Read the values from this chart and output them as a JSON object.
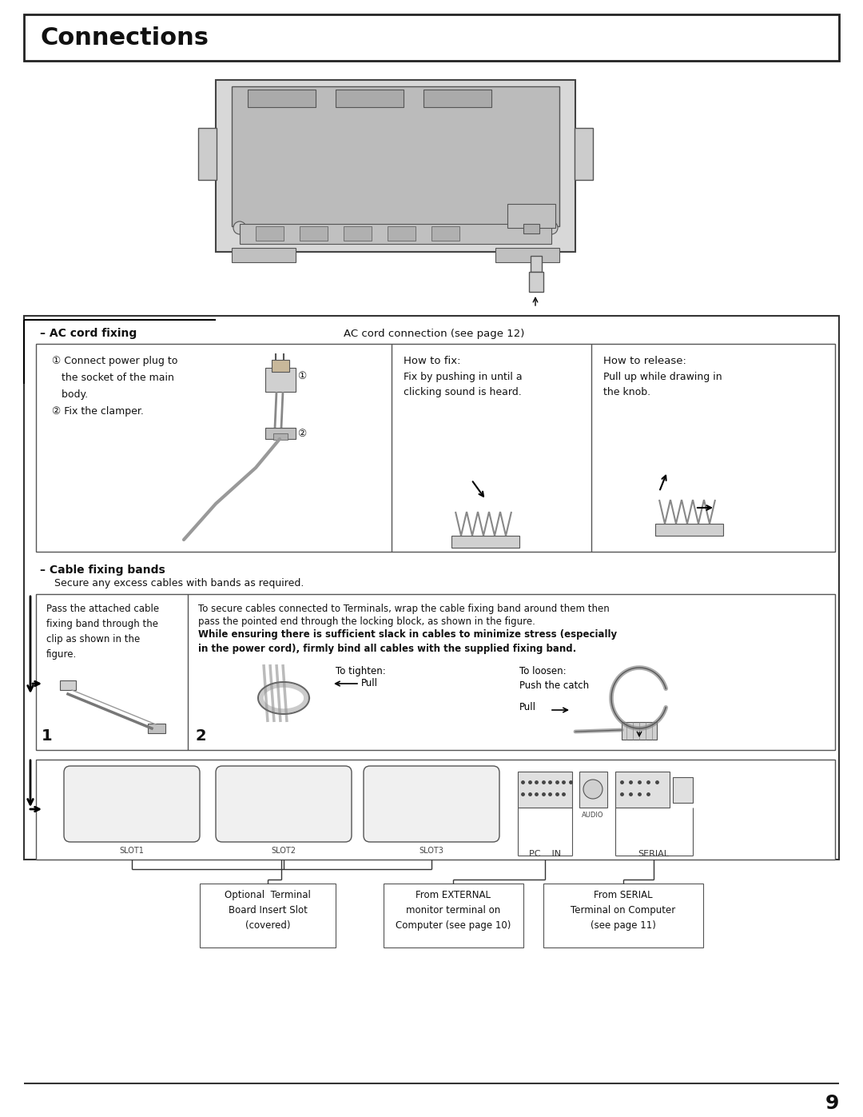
{
  "page_bg": "#ffffff",
  "page_number": "9",
  "title": "Connections",
  "title_fontsize": 22,
  "ac_cord_fixing_label": "– AC cord fixing",
  "ac_cord_connection_label": "AC cord connection (see page 12)",
  "ac_cord_step1_text": "① Connect power plug to\n   the socket of the main\n   body.\n② Fix the clamper.",
  "how_to_fix_title": "How to fix:",
  "how_to_fix_text": "Fix by pushing in until a\nclicking sound is heard.",
  "how_to_release_title": "How to release:",
  "how_to_release_text": "Pull up while drawing in\nthe knob.",
  "cable_fixing_label": "– Cable fixing bands",
  "cable_fixing_subtext": "Secure any excess cables with bands as required.",
  "cable_box_text1": "Pass the attached cable\nfixing band through the\nclip as shown in the\nfigure.",
  "cable_box_text2_line1": "To secure cables connected to Terminals, wrap the cable fixing band around them then",
  "cable_box_text2_line2": "pass the pointed end through the locking block, as shown in the figure.",
  "cable_box_text2_bold": "While ensuring there is sufficient slack in cables to minimize stress (especially\nin the power cord), firmly bind all cables with the supplied fixing band.",
  "to_tighten": "To tighten:",
  "pull_left_text": "←Pull",
  "to_loosen": "To loosen:\nPush the catch",
  "pull_right_text": "Pull →",
  "num1": "1",
  "num2": "2",
  "optional_terminal_text": "Optional  Terminal\nBoard Insert Slot\n(covered)",
  "from_external_text": "From EXTERNAL\nmonitor terminal on\nComputer (see page 10)",
  "from_serial_text": "From SERIAL\nTerminal on Computer\n(see page 11)",
  "slot1": "SLOT1",
  "slot2": "SLOT2",
  "slot3": "SLOT3",
  "pc_in": "PC    IN",
  "serial_label": "SERIAL",
  "audio_label": "AUDIO"
}
